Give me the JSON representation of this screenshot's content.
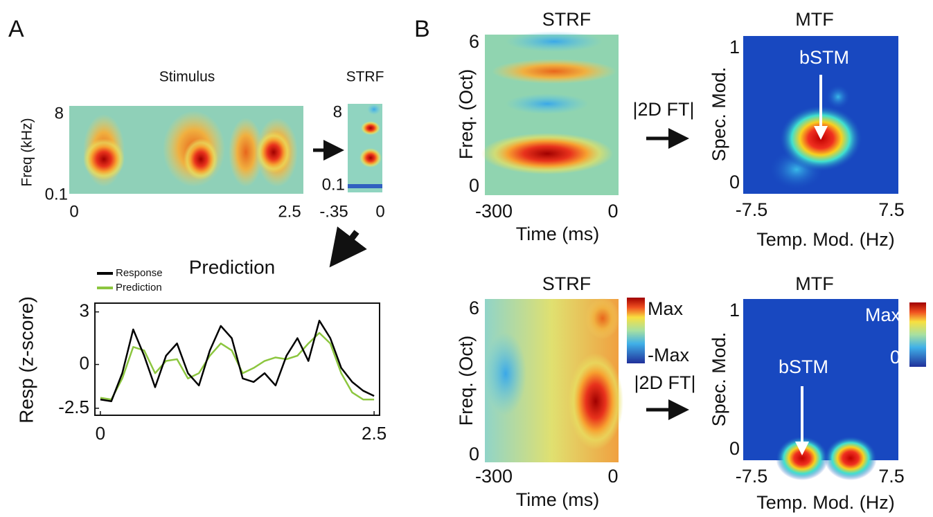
{
  "panel_a": {
    "label": "A",
    "stimulus": {
      "title": "Stimulus",
      "y_label": "Freq (kHz)",
      "y_ticks": [
        "8",
        "0.1"
      ],
      "x_ticks": [
        "0",
        "2.5"
      ]
    },
    "strf": {
      "title": "STRF",
      "y_ticks": [
        "8",
        "0.1"
      ],
      "x_ticks": [
        "-.35",
        "0"
      ]
    },
    "prediction": {
      "type": "line",
      "title": "Prediction",
      "y_label": "Resp (z-score)",
      "x": [
        0,
        0.1,
        0.2,
        0.3,
        0.4,
        0.5,
        0.6,
        0.7,
        0.8,
        0.9,
        1.0,
        1.1,
        1.2,
        1.3,
        1.4,
        1.5,
        1.6,
        1.7,
        1.8,
        1.9,
        2.0,
        2.1,
        2.2,
        2.3,
        2.4,
        2.5
      ],
      "series": [
        {
          "name": "Response",
          "color": "#000000",
          "values": [
            -2,
            -2.1,
            -0.5,
            2,
            0.5,
            -1.3,
            0.5,
            1.2,
            -0.5,
            -1.2,
            0.8,
            2.2,
            1.5,
            -0.8,
            -1,
            -0.5,
            -1.2,
            0.5,
            1.5,
            0.2,
            2.5,
            1.5,
            -0.2,
            -1,
            -1.5,
            -1.8
          ]
        },
        {
          "name": "Prediction",
          "color": "#8cc63f",
          "values": [
            -1.9,
            -2,
            -0.8,
            1,
            0.8,
            -0.5,
            0.2,
            0.3,
            -0.8,
            -0.5,
            0.5,
            1.2,
            0.8,
            -0.5,
            -0.2,
            0.2,
            0.4,
            0.3,
            0.5,
            1.2,
            1.8,
            1.2,
            -0.5,
            -1.6,
            -2,
            -2
          ]
        }
      ],
      "xlim": [
        -0.05,
        2.55
      ],
      "ylim": [
        -2.9,
        3.5
      ],
      "xticks": [
        0,
        2.5
      ],
      "yticks": [
        3,
        0,
        -2.5
      ]
    }
  },
  "panel_b": {
    "label": "B",
    "rows": [
      {
        "strf": {
          "title": "STRF",
          "y_label": "Freq. (Oct)",
          "y_ticks": [
            "6",
            "0"
          ],
          "x_ticks": [
            "-300",
            "0"
          ],
          "x_label": "Time (ms)"
        },
        "transform": "|2D FT|",
        "mtf": {
          "title": "MTF",
          "y_label": "Spec. Mod.",
          "y_ticks": [
            "1",
            "0"
          ],
          "x_ticks": [
            "-7.5",
            "7.5"
          ],
          "x_label": "Temp. Mod. (Hz)",
          "annotation": "bSTM"
        }
      },
      {
        "strf": {
          "title": "STRF",
          "y_label": "Freq. (Oct)",
          "y_ticks": [
            "6",
            "0"
          ],
          "x_ticks": [
            "-300",
            "0"
          ],
          "x_label": "Time (ms)",
          "colorbar": [
            "Max",
            "-Max"
          ]
        },
        "transform": "|2D FT|",
        "mtf": {
          "title": "MTF",
          "y_label": "Spec. Mod.",
          "y_ticks": [
            "1",
            "0"
          ],
          "x_ticks": [
            "-7.5",
            "7.5"
          ],
          "x_label": "Temp. Mod. (Hz)",
          "annotation": "bSTM",
          "colorbar": [
            "Max",
            "0"
          ]
        }
      }
    ]
  }
}
